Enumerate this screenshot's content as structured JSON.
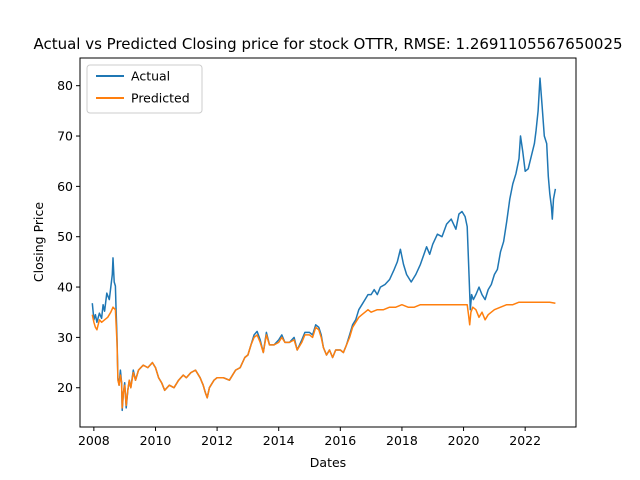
{
  "chart_data": {
    "type": "line",
    "title": "Actual vs Predicted Closing price for stock OTTR, RMSE: 1.2691105567650025",
    "xlabel": "Dates",
    "ylabel": "Closing Price",
    "xlim": [
      2007.55,
      2023.65
    ],
    "ylim": [
      12.2,
      85.5
    ],
    "xticks": [
      2008,
      2010,
      2012,
      2014,
      2016,
      2018,
      2020,
      2022
    ],
    "xtick_labels": [
      "2008",
      "2010",
      "2012",
      "2014",
      "2016",
      "2018",
      "2020",
      "2022"
    ],
    "yticks": [
      20,
      30,
      40,
      50,
      60,
      70,
      80
    ],
    "ytick_labels": [
      "20",
      "30",
      "40",
      "50",
      "60",
      "70",
      "80"
    ],
    "grid": false,
    "legend_position": "top-left",
    "series": [
      {
        "name": "Actual",
        "color": "#1f77b4",
        "points": [
          [
            2007.95,
            36.8
          ],
          [
            2008.0,
            33.5
          ],
          [
            2008.05,
            34.5
          ],
          [
            2008.1,
            33.0
          ],
          [
            2008.18,
            34.8
          ],
          [
            2008.25,
            33.8
          ],
          [
            2008.3,
            36.5
          ],
          [
            2008.35,
            35.2
          ],
          [
            2008.42,
            38.8
          ],
          [
            2008.5,
            37.5
          ],
          [
            2008.55,
            40.0
          ],
          [
            2008.6,
            42.5
          ],
          [
            2008.62,
            45.8
          ],
          [
            2008.66,
            41.0
          ],
          [
            2008.7,
            40.2
          ],
          [
            2008.72,
            36.0
          ],
          [
            2008.75,
            30.0
          ],
          [
            2008.78,
            22.0
          ],
          [
            2008.82,
            20.5
          ],
          [
            2008.86,
            23.5
          ],
          [
            2008.9,
            21.0
          ],
          [
            2008.92,
            15.5
          ],
          [
            2008.96,
            19.0
          ],
          [
            2009.0,
            21.0
          ],
          [
            2009.05,
            16.0
          ],
          [
            2009.1,
            19.5
          ],
          [
            2009.15,
            21.5
          ],
          [
            2009.2,
            20.0
          ],
          [
            2009.28,
            23.5
          ],
          [
            2009.35,
            21.5
          ],
          [
            2009.45,
            23.5
          ],
          [
            2009.6,
            24.5
          ],
          [
            2009.75,
            24.0
          ],
          [
            2009.9,
            25.0
          ],
          [
            2010.0,
            24.0
          ],
          [
            2010.1,
            22.0
          ],
          [
            2010.2,
            21.0
          ],
          [
            2010.3,
            19.5
          ],
          [
            2010.45,
            20.5
          ],
          [
            2010.6,
            20.0
          ],
          [
            2010.75,
            21.5
          ],
          [
            2010.9,
            22.5
          ],
          [
            2011.0,
            22.0
          ],
          [
            2011.15,
            23.0
          ],
          [
            2011.3,
            23.5
          ],
          [
            2011.45,
            22.0
          ],
          [
            2011.55,
            20.5
          ],
          [
            2011.62,
            19.0
          ],
          [
            2011.68,
            18.0
          ],
          [
            2011.75,
            20.0
          ],
          [
            2011.9,
            21.5
          ],
          [
            2012.0,
            22.0
          ],
          [
            2012.2,
            22.0
          ],
          [
            2012.4,
            21.5
          ],
          [
            2012.6,
            23.5
          ],
          [
            2012.75,
            24.0
          ],
          [
            2012.9,
            26.0
          ],
          [
            2013.0,
            26.5
          ],
          [
            2013.1,
            28.5
          ],
          [
            2013.2,
            30.5
          ],
          [
            2013.3,
            31.2
          ],
          [
            2013.4,
            29.5
          ],
          [
            2013.5,
            27.0
          ],
          [
            2013.6,
            31.0
          ],
          [
            2013.7,
            28.5
          ],
          [
            2013.85,
            28.5
          ],
          [
            2014.0,
            29.5
          ],
          [
            2014.1,
            30.5
          ],
          [
            2014.2,
            29.0
          ],
          [
            2014.35,
            29.0
          ],
          [
            2014.5,
            30.0
          ],
          [
            2014.6,
            27.5
          ],
          [
            2014.75,
            29.5
          ],
          [
            2014.85,
            31.0
          ],
          [
            2015.0,
            31.0
          ],
          [
            2015.1,
            30.5
          ],
          [
            2015.2,
            32.5
          ],
          [
            2015.3,
            32.0
          ],
          [
            2015.38,
            30.5
          ],
          [
            2015.45,
            28.0
          ],
          [
            2015.55,
            26.5
          ],
          [
            2015.65,
            27.5
          ],
          [
            2015.75,
            26.0
          ],
          [
            2015.85,
            27.5
          ],
          [
            2016.0,
            27.5
          ],
          [
            2016.1,
            27.0
          ],
          [
            2016.2,
            28.5
          ],
          [
            2016.3,
            30.5
          ],
          [
            2016.4,
            32.5
          ],
          [
            2016.5,
            33.5
          ],
          [
            2016.6,
            35.5
          ],
          [
            2016.7,
            36.5
          ],
          [
            2016.8,
            37.5
          ],
          [
            2016.9,
            38.5
          ],
          [
            2017.0,
            38.5
          ],
          [
            2017.1,
            39.5
          ],
          [
            2017.2,
            38.5
          ],
          [
            2017.3,
            40.0
          ],
          [
            2017.45,
            40.5
          ],
          [
            2017.6,
            41.5
          ],
          [
            2017.75,
            43.5
          ],
          [
            2017.85,
            45.0
          ],
          [
            2017.95,
            47.5
          ],
          [
            2018.05,
            44.5
          ],
          [
            2018.15,
            42.5
          ],
          [
            2018.3,
            41.0
          ],
          [
            2018.45,
            42.5
          ],
          [
            2018.6,
            44.5
          ],
          [
            2018.8,
            48.0
          ],
          [
            2018.9,
            46.5
          ],
          [
            2019.0,
            48.5
          ],
          [
            2019.15,
            50.5
          ],
          [
            2019.3,
            50.0
          ],
          [
            2019.45,
            52.5
          ],
          [
            2019.6,
            53.5
          ],
          [
            2019.75,
            51.5
          ],
          [
            2019.85,
            54.5
          ],
          [
            2019.95,
            55.0
          ],
          [
            2020.05,
            54.0
          ],
          [
            2020.12,
            52.0
          ],
          [
            2020.18,
            42.0
          ],
          [
            2020.22,
            35.5
          ],
          [
            2020.26,
            38.5
          ],
          [
            2020.32,
            37.5
          ],
          [
            2020.4,
            38.5
          ],
          [
            2020.5,
            40.0
          ],
          [
            2020.6,
            38.5
          ],
          [
            2020.7,
            37.5
          ],
          [
            2020.8,
            39.5
          ],
          [
            2020.9,
            40.5
          ],
          [
            2021.0,
            42.5
          ],
          [
            2021.1,
            43.5
          ],
          [
            2021.2,
            47.0
          ],
          [
            2021.3,
            49.0
          ],
          [
            2021.4,
            53.0
          ],
          [
            2021.5,
            57.5
          ],
          [
            2021.6,
            60.5
          ],
          [
            2021.7,
            62.5
          ],
          [
            2021.8,
            65.5
          ],
          [
            2021.85,
            70.0
          ],
          [
            2021.92,
            67.0
          ],
          [
            2022.0,
            63.0
          ],
          [
            2022.1,
            63.5
          ],
          [
            2022.2,
            66.0
          ],
          [
            2022.3,
            68.5
          ],
          [
            2022.35,
            71.0
          ],
          [
            2022.42,
            75.0
          ],
          [
            2022.48,
            81.5
          ],
          [
            2022.55,
            76.0
          ],
          [
            2022.62,
            70.0
          ],
          [
            2022.7,
            68.5
          ],
          [
            2022.75,
            62.0
          ],
          [
            2022.8,
            58.5
          ],
          [
            2022.85,
            56.0
          ],
          [
            2022.88,
            53.5
          ],
          [
            2022.92,
            57.5
          ],
          [
            2022.98,
            59.5
          ]
        ]
      },
      {
        "name": "Predicted",
        "color": "#ff7f0e",
        "points": [
          [
            2007.95,
            34.5
          ],
          [
            2008.0,
            33.0
          ],
          [
            2008.05,
            32.0
          ],
          [
            2008.1,
            31.5
          ],
          [
            2008.18,
            33.5
          ],
          [
            2008.25,
            33.0
          ],
          [
            2008.35,
            33.5
          ],
          [
            2008.45,
            34.0
          ],
          [
            2008.55,
            35.0
          ],
          [
            2008.62,
            36.0
          ],
          [
            2008.7,
            35.5
          ],
          [
            2008.75,
            29.0
          ],
          [
            2008.78,
            21.5
          ],
          [
            2008.82,
            20.5
          ],
          [
            2008.86,
            22.5
          ],
          [
            2008.9,
            21.0
          ],
          [
            2008.92,
            16.0
          ],
          [
            2008.96,
            19.0
          ],
          [
            2009.0,
            20.5
          ],
          [
            2009.05,
            16.5
          ],
          [
            2009.1,
            19.5
          ],
          [
            2009.15,
            21.5
          ],
          [
            2009.2,
            20.0
          ],
          [
            2009.28,
            23.0
          ],
          [
            2009.35,
            21.5
          ],
          [
            2009.45,
            23.5
          ],
          [
            2009.6,
            24.5
          ],
          [
            2009.75,
            24.0
          ],
          [
            2009.9,
            25.0
          ],
          [
            2010.0,
            24.0
          ],
          [
            2010.1,
            22.0
          ],
          [
            2010.2,
            21.0
          ],
          [
            2010.3,
            19.5
          ],
          [
            2010.45,
            20.5
          ],
          [
            2010.6,
            20.0
          ],
          [
            2010.75,
            21.5
          ],
          [
            2010.9,
            22.5
          ],
          [
            2011.0,
            22.0
          ],
          [
            2011.15,
            23.0
          ],
          [
            2011.3,
            23.5
          ],
          [
            2011.45,
            22.0
          ],
          [
            2011.55,
            20.5
          ],
          [
            2011.62,
            19.0
          ],
          [
            2011.68,
            18.0
          ],
          [
            2011.75,
            20.0
          ],
          [
            2011.9,
            21.5
          ],
          [
            2012.0,
            22.0
          ],
          [
            2012.2,
            22.0
          ],
          [
            2012.4,
            21.5
          ],
          [
            2012.6,
            23.5
          ],
          [
            2012.75,
            24.0
          ],
          [
            2012.9,
            26.0
          ],
          [
            2013.0,
            26.5
          ],
          [
            2013.1,
            28.5
          ],
          [
            2013.2,
            30.0
          ],
          [
            2013.3,
            30.5
          ],
          [
            2013.4,
            29.0
          ],
          [
            2013.5,
            27.0
          ],
          [
            2013.6,
            30.5
          ],
          [
            2013.7,
            28.5
          ],
          [
            2013.85,
            28.5
          ],
          [
            2014.0,
            29.0
          ],
          [
            2014.1,
            30.0
          ],
          [
            2014.2,
            29.0
          ],
          [
            2014.35,
            29.0
          ],
          [
            2014.5,
            29.5
          ],
          [
            2014.6,
            27.5
          ],
          [
            2014.75,
            29.0
          ],
          [
            2014.85,
            30.5
          ],
          [
            2015.0,
            30.5
          ],
          [
            2015.1,
            30.0
          ],
          [
            2015.2,
            32.0
          ],
          [
            2015.3,
            31.5
          ],
          [
            2015.38,
            30.0
          ],
          [
            2015.45,
            28.0
          ],
          [
            2015.55,
            26.5
          ],
          [
            2015.65,
            27.5
          ],
          [
            2015.75,
            26.0
          ],
          [
            2015.85,
            27.5
          ],
          [
            2016.0,
            27.5
          ],
          [
            2016.1,
            27.0
          ],
          [
            2016.2,
            28.5
          ],
          [
            2016.3,
            30.0
          ],
          [
            2016.4,
            32.0
          ],
          [
            2016.5,
            33.0
          ],
          [
            2016.6,
            34.0
          ],
          [
            2016.7,
            34.5
          ],
          [
            2016.8,
            35.0
          ],
          [
            2016.9,
            35.5
          ],
          [
            2017.0,
            35.0
          ],
          [
            2017.2,
            35.5
          ],
          [
            2017.4,
            35.5
          ],
          [
            2017.6,
            36.0
          ],
          [
            2017.8,
            36.0
          ],
          [
            2018.0,
            36.5
          ],
          [
            2018.2,
            36.0
          ],
          [
            2018.4,
            36.0
          ],
          [
            2018.6,
            36.5
          ],
          [
            2018.8,
            36.5
          ],
          [
            2019.0,
            36.5
          ],
          [
            2019.2,
            36.5
          ],
          [
            2019.4,
            36.5
          ],
          [
            2019.6,
            36.5
          ],
          [
            2019.8,
            36.5
          ],
          [
            2020.0,
            36.5
          ],
          [
            2020.12,
            36.5
          ],
          [
            2020.16,
            34.5
          ],
          [
            2020.2,
            32.5
          ],
          [
            2020.24,
            35.0
          ],
          [
            2020.3,
            36.0
          ],
          [
            2020.4,
            35.5
          ],
          [
            2020.5,
            34.0
          ],
          [
            2020.6,
            35.0
          ],
          [
            2020.7,
            33.5
          ],
          [
            2020.8,
            34.5
          ],
          [
            2020.9,
            35.0
          ],
          [
            2021.0,
            35.5
          ],
          [
            2021.2,
            36.0
          ],
          [
            2021.4,
            36.5
          ],
          [
            2021.6,
            36.5
          ],
          [
            2021.8,
            37.0
          ],
          [
            2022.0,
            37.0
          ],
          [
            2022.2,
            37.0
          ],
          [
            2022.4,
            37.0
          ],
          [
            2022.6,
            37.0
          ],
          [
            2022.8,
            37.0
          ],
          [
            2022.98,
            36.8
          ]
        ]
      }
    ]
  }
}
